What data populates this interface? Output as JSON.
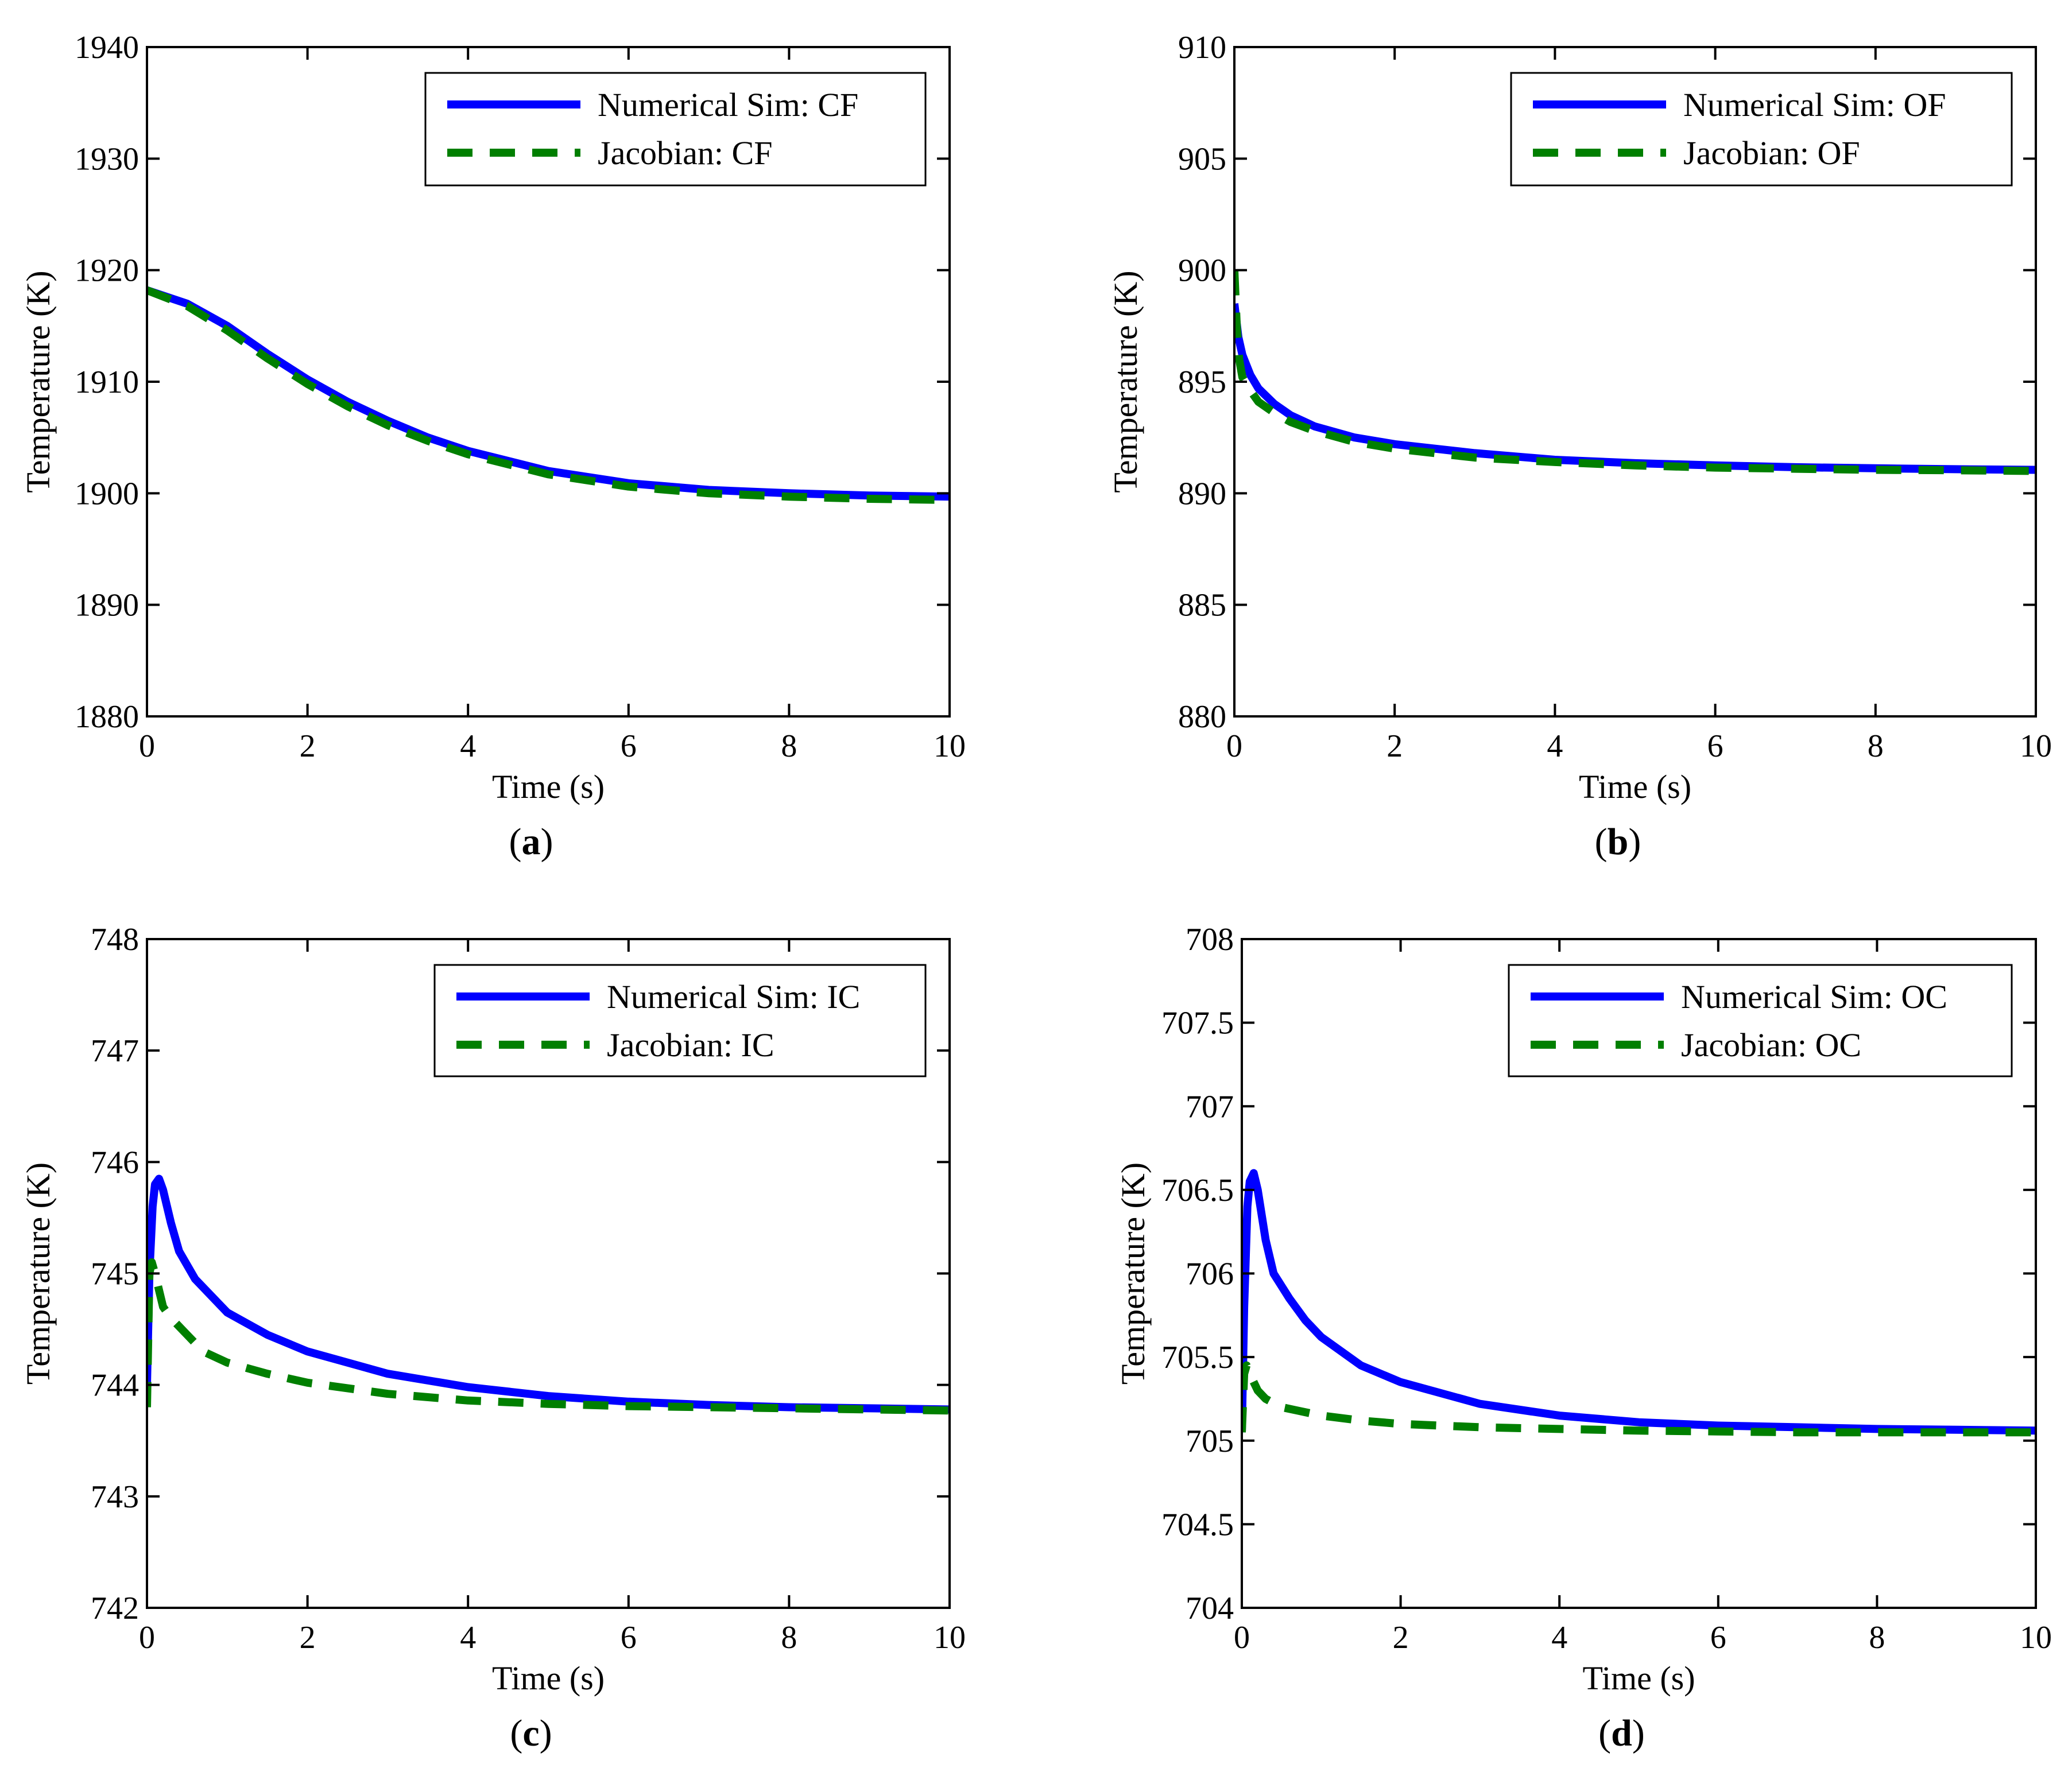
{
  "colors": {
    "numerical": "#0000ff",
    "jacobian": "#007f00",
    "axis": "#000000"
  },
  "chart_data": [
    {
      "type": "line",
      "caption": "a",
      "xlabel": "Time (s)",
      "ylabel": "Temperature (K)",
      "xlim": [
        0,
        10
      ],
      "ylim": [
        1880,
        1940
      ],
      "xticks": [
        "0",
        "2",
        "4",
        "6",
        "8",
        "10"
      ],
      "yticks": [
        "1880",
        "1890",
        "1900",
        "1910",
        "1920",
        "1930",
        "1940"
      ],
      "legend": [
        "Numerical Sim: CF",
        "Jacobian: CF"
      ],
      "series": [
        {
          "name": "Numerical Sim: CF",
          "style": "solid",
          "x": [
            0,
            0.5,
            1,
            1.5,
            2,
            2.5,
            3,
            3.5,
            4,
            5,
            6,
            7,
            8,
            9,
            10
          ],
          "y": [
            1918.2,
            1917.0,
            1915.0,
            1912.5,
            1910.2,
            1908.2,
            1906.5,
            1905.0,
            1903.8,
            1902.0,
            1900.9,
            1900.3,
            1900.0,
            1899.8,
            1899.7
          ]
        },
        {
          "name": "Jacobian: CF",
          "style": "dashed",
          "x": [
            0,
            0.5,
            1,
            1.5,
            2,
            2.5,
            3,
            3.5,
            4,
            5,
            6,
            7,
            8,
            9,
            10
          ],
          "y": [
            1918.2,
            1916.8,
            1914.6,
            1912.1,
            1909.8,
            1907.8,
            1906.1,
            1904.7,
            1903.5,
            1901.7,
            1900.6,
            1900.0,
            1899.7,
            1899.5,
            1899.4
          ]
        }
      ]
    },
    {
      "type": "line",
      "caption": "b",
      "xlabel": "Time (s)",
      "ylabel": "Temperature (K)",
      "xlim": [
        0,
        10
      ],
      "ylim": [
        880,
        910
      ],
      "xticks": [
        "0",
        "2",
        "4",
        "6",
        "8",
        "10"
      ],
      "yticks": [
        "880",
        "885",
        "890",
        "895",
        "900",
        "905",
        "910"
      ],
      "legend": [
        "Numerical Sim: OF",
        "Jacobian: OF"
      ],
      "series": [
        {
          "name": "Numerical Sim: OF",
          "style": "solid",
          "x": [
            0,
            0.05,
            0.1,
            0.2,
            0.3,
            0.5,
            0.7,
            1,
            1.5,
            2,
            3,
            4,
            5,
            6,
            7,
            8,
            9,
            10
          ],
          "y": [
            898.5,
            897.0,
            896.2,
            895.3,
            894.7,
            894.0,
            893.5,
            893.0,
            892.5,
            892.2,
            891.8,
            891.5,
            891.35,
            891.25,
            891.17,
            891.12,
            891.08,
            891.05
          ]
        },
        {
          "name": "Jacobian: OF",
          "style": "dashed",
          "x": [
            0,
            0.03,
            0.06,
            0.1,
            0.2,
            0.3,
            0.5,
            0.7,
            1,
            1.5,
            2,
            3,
            4,
            5,
            6,
            7,
            8,
            9,
            10
          ],
          "y": [
            900,
            897.5,
            896.0,
            895.2,
            894.6,
            894.1,
            893.6,
            893.2,
            892.8,
            892.3,
            892.0,
            891.6,
            891.4,
            891.25,
            891.15,
            891.1,
            891.05,
            891.03,
            891.0
          ]
        }
      ]
    },
    {
      "type": "line",
      "caption": "c",
      "xlabel": "Time (s)",
      "ylabel": "Temperature (K)",
      "xlim": [
        0,
        10
      ],
      "ylim": [
        742,
        748
      ],
      "xticks": [
        "0",
        "2",
        "4",
        "6",
        "8",
        "10"
      ],
      "yticks": [
        "742",
        "743",
        "744",
        "745",
        "746",
        "747",
        "748"
      ],
      "legend": [
        "Numerical Sim: IC",
        "Jacobian: IC"
      ],
      "series": [
        {
          "name": "Numerical Sim: IC",
          "style": "solid",
          "x": [
            0,
            0.03,
            0.07,
            0.1,
            0.15,
            0.2,
            0.3,
            0.4,
            0.6,
            0.8,
            1,
            1.5,
            2,
            3,
            4,
            5,
            6,
            7,
            8,
            9,
            10
          ],
          "y": [
            744.0,
            745.0,
            745.6,
            745.8,
            745.85,
            745.75,
            745.45,
            745.2,
            744.95,
            744.8,
            744.65,
            744.45,
            744.3,
            744.1,
            743.98,
            743.9,
            743.85,
            743.82,
            743.8,
            743.79,
            743.78
          ]
        },
        {
          "name": "Jacobian: IC",
          "style": "dashed",
          "x": [
            0,
            0.03,
            0.06,
            0.1,
            0.15,
            0.2,
            0.3,
            0.5,
            0.7,
            1,
            1.5,
            2,
            3,
            4,
            5,
            6,
            7,
            8,
            9,
            10
          ],
          "y": [
            743.8,
            745.0,
            745.1,
            745.0,
            744.85,
            744.7,
            744.6,
            744.45,
            744.3,
            744.2,
            744.1,
            744.02,
            743.92,
            743.86,
            743.83,
            743.81,
            743.8,
            743.79,
            743.78,
            743.77
          ]
        }
      ]
    },
    {
      "type": "line",
      "caption": "d",
      "xlabel": "Time (s)",
      "ylabel": "Temperature (K)",
      "xlim": [
        0,
        10
      ],
      "ylim": [
        704,
        708
      ],
      "xticks": [
        "0",
        "2",
        "4",
        "6",
        "8",
        "10"
      ],
      "yticks": [
        "704",
        "704.5",
        "705",
        "705.5",
        "706",
        "706.5",
        "707",
        "707.5",
        "708"
      ],
      "legend": [
        "Numerical Sim: OC",
        "Jacobian: OC"
      ],
      "series": [
        {
          "name": "Numerical Sim: OC",
          "style": "solid",
          "x": [
            0,
            0.03,
            0.07,
            0.1,
            0.15,
            0.2,
            0.3,
            0.4,
            0.6,
            0.8,
            1,
            1.5,
            2,
            3,
            4,
            5,
            6,
            7,
            8,
            9,
            10
          ],
          "y": [
            705.05,
            705.8,
            706.4,
            706.55,
            706.6,
            706.5,
            706.2,
            706.0,
            705.85,
            705.72,
            705.62,
            705.45,
            705.35,
            705.22,
            705.15,
            705.11,
            705.09,
            705.08,
            705.07,
            705.065,
            705.06
          ]
        },
        {
          "name": "Jacobian: OC",
          "style": "dashed",
          "x": [
            0,
            0.03,
            0.06,
            0.1,
            0.15,
            0.2,
            0.3,
            0.5,
            0.7,
            1,
            1.5,
            2,
            3,
            4,
            5,
            6,
            7,
            8,
            9,
            10
          ],
          "y": [
            705.05,
            705.4,
            705.45,
            705.4,
            705.35,
            705.3,
            705.25,
            705.2,
            705.18,
            705.15,
            705.12,
            705.1,
            705.08,
            705.07,
            705.06,
            705.055,
            705.05,
            705.05,
            705.05,
            705.05
          ]
        }
      ]
    }
  ]
}
